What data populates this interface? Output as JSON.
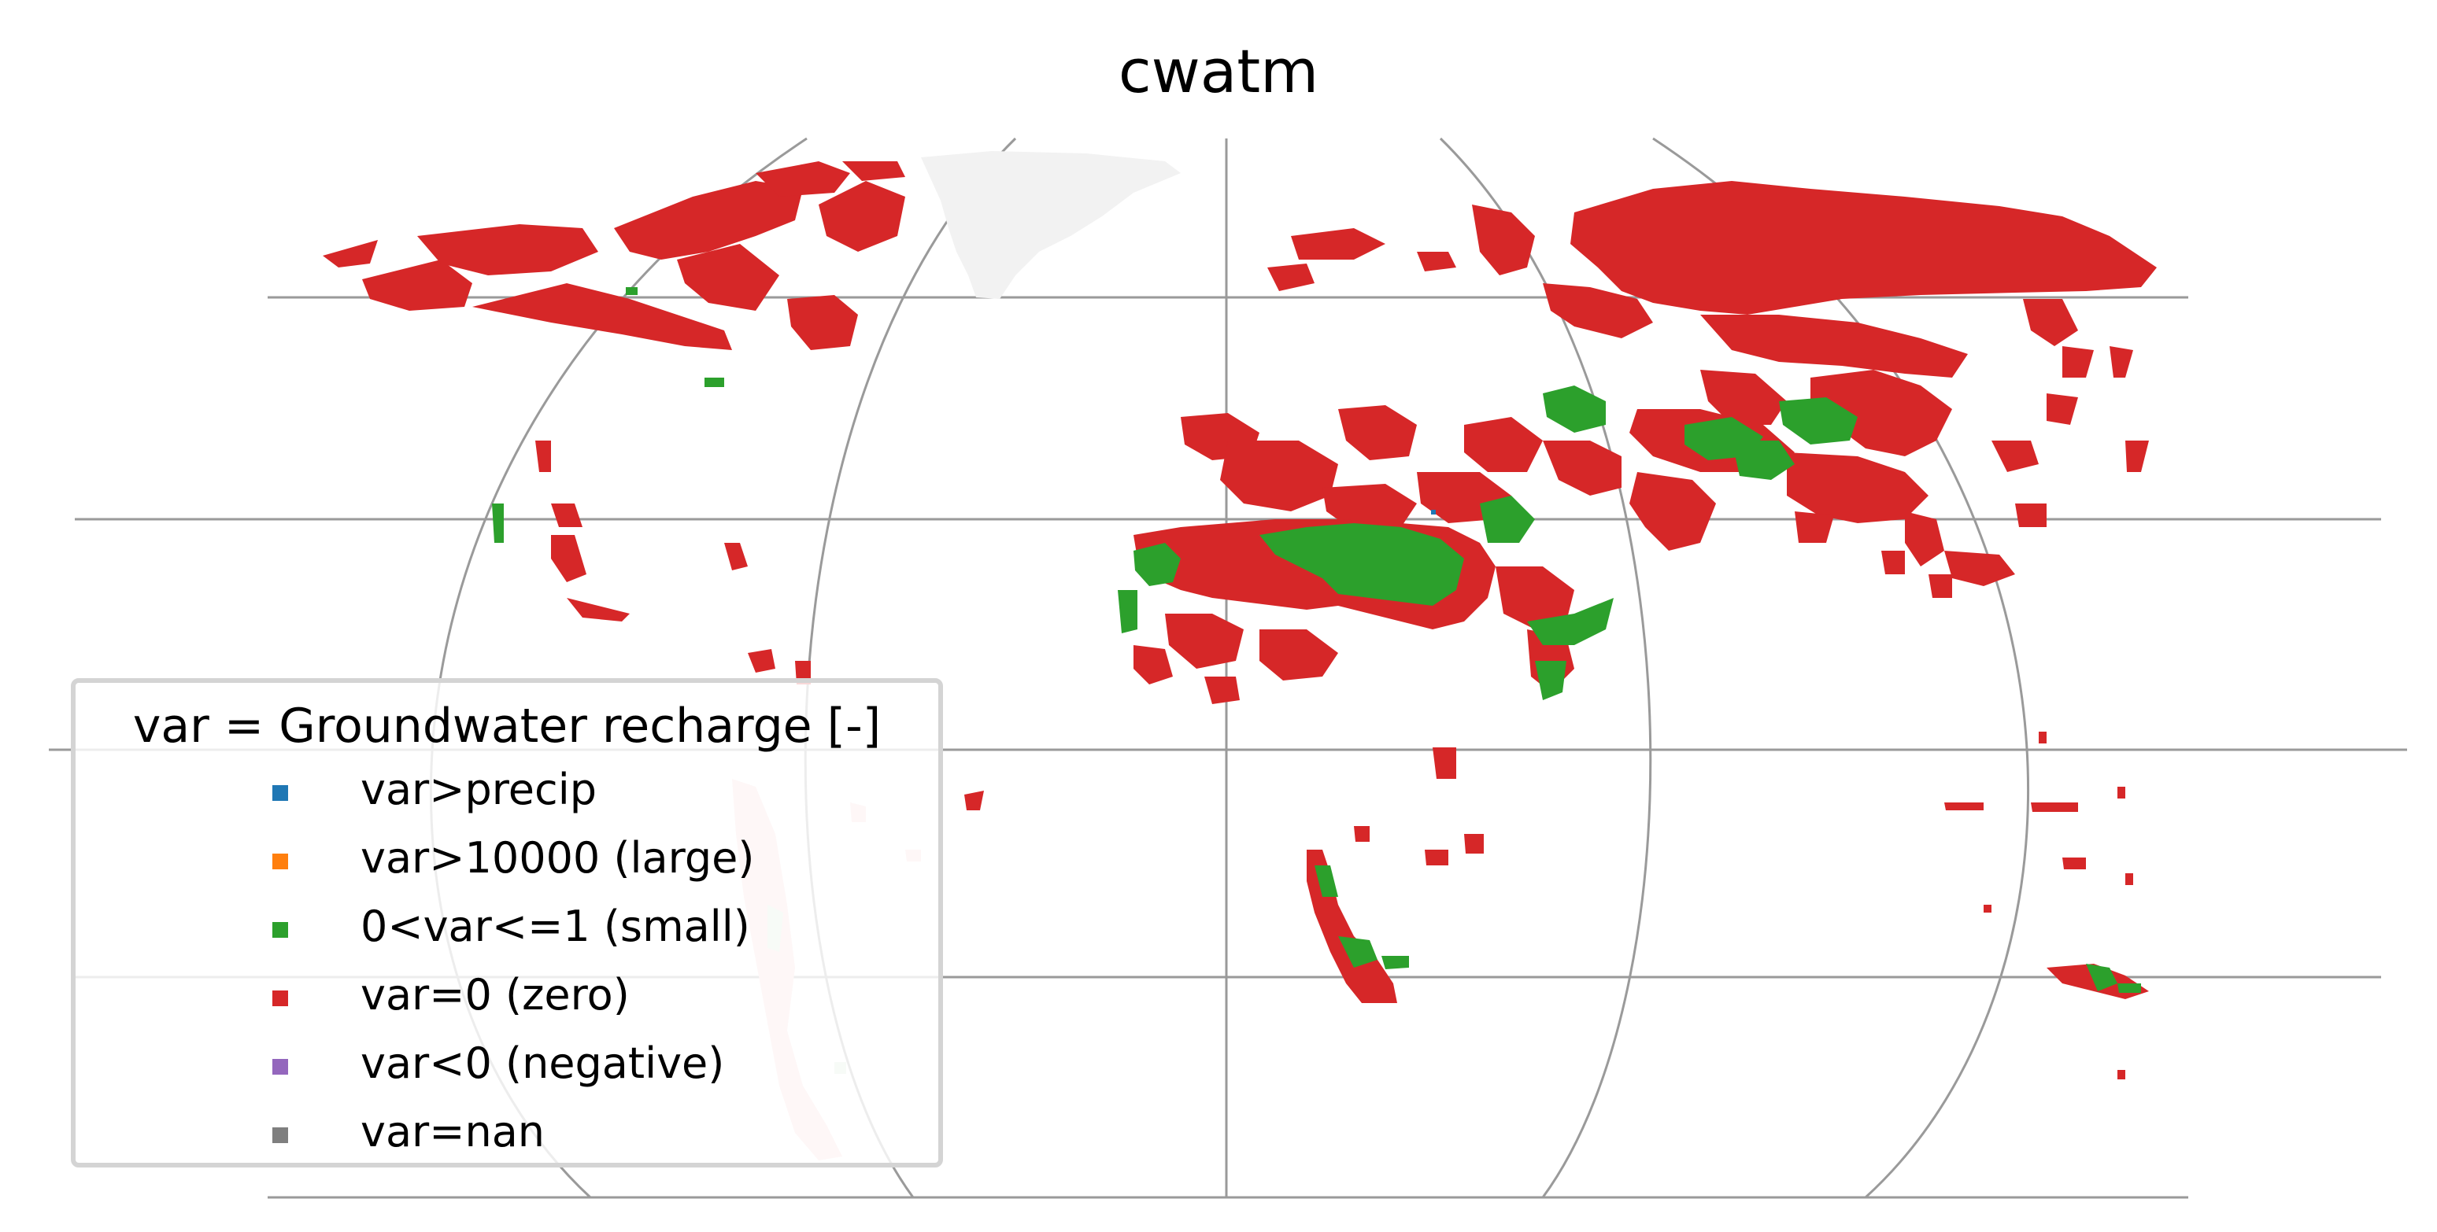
{
  "title": "cwatm",
  "legend": {
    "title": "var = Groundwater recharge [-]",
    "placement": "lower-left",
    "items": [
      {
        "label": "var>precip",
        "color": "#1f77b4"
      },
      {
        "label": "var>10000 (large)",
        "color": "#ff7f0e"
      },
      {
        "label": "0<var<=1 (small)",
        "color": "#2ca02c"
      },
      {
        "label": "var=0 (zero)",
        "color": "#d62728"
      },
      {
        "label": "var<0 (negative)",
        "color": "#9467bd"
      },
      {
        "label": "var=nan",
        "color": "#7f7f7f"
      }
    ]
  },
  "colors": {
    "zero": "#d62728",
    "small": "#2ca02c",
    "gridlines": "#9a9a9a",
    "masked_land": "#f2f2f2"
  }
}
